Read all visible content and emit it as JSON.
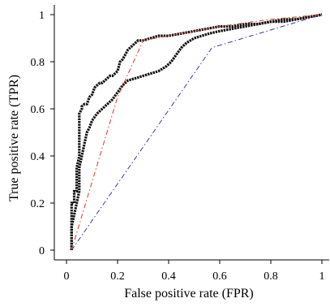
{
  "chart_data": {
    "type": "line",
    "title": "",
    "xlabel": "False positive rate (FPR)",
    "ylabel": "True positive rate (TPR)",
    "xlim": [
      0,
      1
    ],
    "ylim": [
      0,
      1
    ],
    "xticks": [
      0,
      0.2,
      0.4,
      0.6,
      0.8,
      1
    ],
    "yticks": [
      0,
      0.2,
      0.4,
      0.6,
      0.8,
      1
    ],
    "xtick_labels": [
      "0",
      "0.2",
      "0.4",
      "0.6",
      "0.8",
      "1"
    ],
    "ytick_labels": [
      "0",
      "0.2",
      "0.4",
      "0.6",
      "0.8",
      "1"
    ],
    "grid": false,
    "legend": "none",
    "series": [
      {
        "color": "#111111",
        "style": "dotted-thick",
        "x": [
          0.02,
          0.02,
          0.03,
          0.03,
          0.04,
          0.04,
          0.05,
          0.05,
          0.06,
          0.06,
          0.07,
          0.08,
          0.09,
          0.1,
          0.11,
          0.12,
          0.13,
          0.14,
          0.15,
          0.16,
          0.17,
          0.18,
          0.19,
          0.2,
          0.21,
          0.22,
          0.24,
          0.26,
          0.28,
          0.3,
          0.33,
          0.36,
          0.4,
          0.45,
          0.5,
          0.55,
          0.6,
          0.65,
          0.7,
          0.75,
          0.8,
          0.85,
          0.9,
          0.95,
          1.0
        ],
        "y": [
          0.0,
          0.2,
          0.2,
          0.25,
          0.25,
          0.35,
          0.4,
          0.58,
          0.6,
          0.61,
          0.62,
          0.62,
          0.65,
          0.66,
          0.69,
          0.7,
          0.71,
          0.71,
          0.72,
          0.73,
          0.74,
          0.74,
          0.75,
          0.76,
          0.8,
          0.81,
          0.85,
          0.87,
          0.89,
          0.89,
          0.9,
          0.91,
          0.91,
          0.92,
          0.93,
          0.94,
          0.95,
          0.95,
          0.96,
          0.96,
          0.97,
          0.98,
          0.98,
          0.99,
          1.0
        ]
      },
      {
        "color": "#111111",
        "style": "dotted-thick",
        "x": [
          0.02,
          0.02,
          0.03,
          0.04,
          0.05,
          0.05,
          0.06,
          0.07,
          0.08,
          0.09,
          0.1,
          0.12,
          0.14,
          0.16,
          0.18,
          0.2,
          0.22,
          0.24,
          0.27,
          0.3,
          0.33,
          0.36,
          0.39,
          0.41,
          0.43,
          0.45,
          0.47,
          0.5,
          0.53,
          0.56,
          0.6,
          0.65,
          0.7,
          0.75,
          0.8,
          0.85,
          0.9,
          0.95,
          1.0
        ],
        "y": [
          0.0,
          0.1,
          0.15,
          0.2,
          0.25,
          0.35,
          0.4,
          0.45,
          0.5,
          0.52,
          0.55,
          0.58,
          0.6,
          0.62,
          0.64,
          0.67,
          0.7,
          0.72,
          0.73,
          0.74,
          0.75,
          0.76,
          0.78,
          0.8,
          0.83,
          0.86,
          0.88,
          0.9,
          0.91,
          0.92,
          0.93,
          0.94,
          0.95,
          0.96,
          0.97,
          0.97,
          0.98,
          0.99,
          1.0
        ]
      },
      {
        "color": "#d43a2a",
        "style": "dashdot",
        "x": [
          0.02,
          0.2,
          0.3,
          0.45,
          0.6,
          0.8,
          1.0
        ],
        "y": [
          0.0,
          0.65,
          0.89,
          0.92,
          0.95,
          0.98,
          1.0
        ]
      },
      {
        "color": "#3b3aa0",
        "style": "dashdot",
        "x": [
          0.02,
          0.57,
          1.0
        ],
        "y": [
          0.0,
          0.86,
          1.0
        ]
      }
    ]
  }
}
